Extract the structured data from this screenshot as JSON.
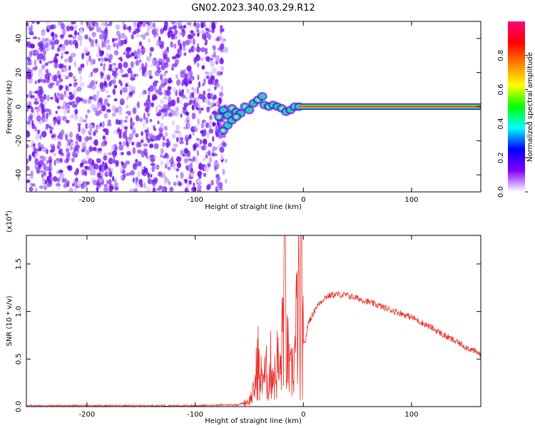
{
  "title": "GN02.2023.340.03.29.R12",
  "chart_data": [
    {
      "type": "heatmap",
      "xlabel": "Height of straight line (km)",
      "ylabel": "Frequency (Hz)",
      "xlim": [
        -256,
        164
      ],
      "ylim": [
        -50,
        50
      ],
      "xticks": [
        -200,
        -100,
        0,
        100
      ],
      "yticks": [
        -40,
        -20,
        0,
        20,
        40
      ],
      "noise_region_x": [
        -256,
        -78
      ],
      "signal_track": [
        {
          "x": -78,
          "y": -6
        },
        {
          "x": -74,
          "y": -2
        },
        {
          "x": -70,
          "y": -5
        },
        {
          "x": -66,
          "y": -1
        },
        {
          "x": -62,
          "y": -3
        },
        {
          "x": -58,
          "y": -4
        },
        {
          "x": -54,
          "y": 0
        },
        {
          "x": -50,
          "y": -2
        },
        {
          "x": -46,
          "y": 2
        },
        {
          "x": -42,
          "y": 4
        },
        {
          "x": -38,
          "y": 6
        },
        {
          "x": -36,
          "y": 1
        },
        {
          "x": -32,
          "y": 0
        },
        {
          "x": -28,
          "y": 1
        },
        {
          "x": -24,
          "y": 0
        },
        {
          "x": -20,
          "y": -1
        },
        {
          "x": -16,
          "y": -3
        },
        {
          "x": -12,
          "y": -2
        },
        {
          "x": -8,
          "y": 0
        },
        {
          "x": -4,
          "y": 0
        }
      ],
      "signal_branch": [
        {
          "x": -74,
          "y": -14
        },
        {
          "x": -70,
          "y": -11
        },
        {
          "x": -66,
          "y": -8
        },
        {
          "x": -62,
          "y": -6
        }
      ],
      "steady_tone": {
        "x_from": -4,
        "x_to": 164,
        "y": 0
      },
      "colorbar": {
        "label": "Normalized spectral amplitude",
        "ticks": [
          "0.0",
          "0.2",
          "0.4",
          "0.6",
          "0.8"
        ],
        "colors": [
          "#ffffff",
          "#7f00ff",
          "#0000ff",
          "#00ffff",
          "#00ff00",
          "#ffff00",
          "#ff8000",
          "#ff0000",
          "#ff0080"
        ]
      }
    },
    {
      "type": "line",
      "xlabel": "Height of straight line (km)",
      "ylabel": "SNR (10 * v/v)",
      "yscale_label": "(x10",
      "yscale_exponent": "4",
      "xlim": [
        -256,
        164
      ],
      "ylim": [
        0.0,
        1.8
      ],
      "xticks": [
        -200,
        -100,
        0,
        100
      ],
      "yticks": [
        "0.0",
        "0.5",
        "1.0",
        "1.5"
      ],
      "color": "#e8302a",
      "points": [
        [
          -256,
          0.01
        ],
        [
          -200,
          0.01
        ],
        [
          -150,
          0.01
        ],
        [
          -100,
          0.01
        ],
        [
          -60,
          0.02
        ],
        [
          -50,
          0.06
        ],
        [
          -46,
          0.15
        ],
        [
          -44,
          0.28
        ],
        [
          -42,
          0.55
        ],
        [
          -40,
          0.2
        ],
        [
          -38,
          0.4
        ],
        [
          -36,
          0.3
        ],
        [
          -34,
          0.35
        ],
        [
          -32,
          0.25
        ],
        [
          -30,
          0.45
        ],
        [
          -28,
          0.35
        ],
        [
          -26,
          0.3
        ],
        [
          -24,
          0.5
        ],
        [
          -22,
          0.3
        ],
        [
          -20,
          0.55
        ],
        [
          -18,
          1.25
        ],
        [
          -17,
          1.8
        ],
        [
          -16,
          0.6
        ],
        [
          -14,
          0.5
        ],
        [
          -12,
          0.3
        ],
        [
          -10,
          0.4
        ],
        [
          -8,
          0.5
        ],
        [
          -6,
          0.9
        ],
        [
          -4,
          1.1
        ],
        [
          -3,
          0.1
        ],
        [
          -2,
          1.8
        ],
        [
          -1,
          0.6
        ],
        [
          2,
          0.7
        ],
        [
          5,
          0.9
        ],
        [
          8,
          0.95
        ],
        [
          12,
          1.05
        ],
        [
          16,
          1.1
        ],
        [
          20,
          1.15
        ],
        [
          25,
          1.17
        ],
        [
          30,
          1.18
        ],
        [
          40,
          1.17
        ],
        [
          50,
          1.14
        ],
        [
          60,
          1.1
        ],
        [
          70,
          1.06
        ],
        [
          80,
          1.02
        ],
        [
          90,
          0.98
        ],
        [
          100,
          0.94
        ],
        [
          110,
          0.88
        ],
        [
          120,
          0.82
        ],
        [
          130,
          0.75
        ],
        [
          140,
          0.69
        ],
        [
          150,
          0.63
        ],
        [
          160,
          0.57
        ],
        [
          164,
          0.55
        ]
      ]
    }
  ]
}
